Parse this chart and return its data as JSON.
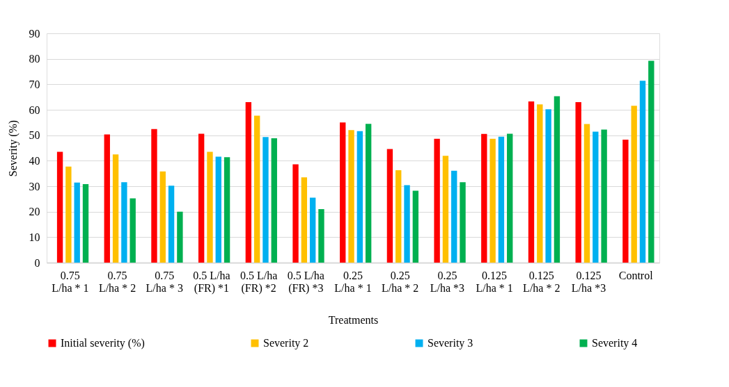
{
  "chart_data": {
    "type": "bar",
    "xlabel": "Treatments",
    "ylabel": "Severity (%)",
    "categories": [
      "0.75\nL/ha * 1",
      "0.75\nL/ha * 2",
      "0.75\nL/ha * 3",
      "0.5 L/ha\n(FR) *1",
      "0.5 L/ha\n(FR) *2",
      "0.5 L/ha\n(FR) *3",
      "0.25\nL/ha * 1",
      "0.25\nL/ha * 2",
      "0.25\nL/ha *3",
      "0.125\nL/ha * 1",
      "0.125\nL/ha * 2",
      "0.125\nL/ha *3",
      "Control"
    ],
    "series": [
      {
        "name": "Initial severity (%)",
        "color": "#ff0000",
        "values": [
          43.5,
          50.3,
          52.4,
          50.6,
          63,
          38.6,
          55,
          44.6,
          48.6,
          50.5,
          63.3,
          63,
          48.3
        ]
      },
      {
        "name": "Severity 2",
        "color": "#ffc000",
        "values": [
          37.7,
          42.5,
          35.8,
          43.5,
          57.7,
          33.5,
          52,
          36.3,
          41.9,
          48.6,
          62.1,
          54.4,
          61.6
        ]
      },
      {
        "name": "Severity 3",
        "color": "#00b0f0",
        "values": [
          31.4,
          31.6,
          30.2,
          41.6,
          49.3,
          25.5,
          51.6,
          30.4,
          36.1,
          49.4,
          60.2,
          51.4,
          71.4
        ]
      },
      {
        "name": "Severity 4",
        "color": "#00b050",
        "values": [
          30.8,
          25.2,
          20,
          41.4,
          48.8,
          21,
          54.5,
          28.2,
          31.6,
          50.6,
          65.3,
          52.2,
          79.2
        ]
      }
    ],
    "ylim": [
      0,
      90
    ],
    "yticks": [
      0,
      10,
      20,
      30,
      40,
      50,
      60,
      70,
      80,
      90
    ],
    "grid": "y",
    "legend": "bottom"
  }
}
